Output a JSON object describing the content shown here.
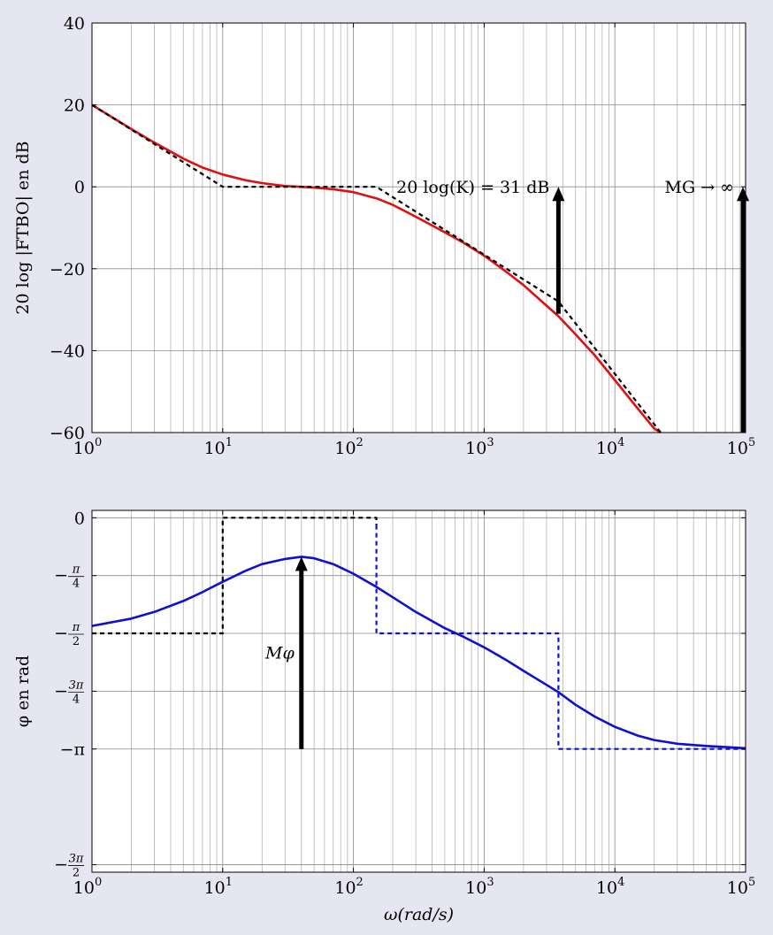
{
  "chart_data": [
    {
      "type": "line",
      "ylabel": "20 log |FTBO| en dB",
      "x_scale": "log",
      "xlim": [
        1,
        100000
      ],
      "ylim": [
        -60,
        40
      ],
      "yticks": [
        40,
        20,
        0,
        -20,
        -40,
        -60
      ],
      "xticks": [
        {
          "base": "10",
          "exp": "0"
        },
        {
          "base": "10",
          "exp": "1"
        },
        {
          "base": "10",
          "exp": "2"
        },
        {
          "base": "10",
          "exp": "3"
        },
        {
          "base": "10",
          "exp": "4"
        },
        {
          "base": "10",
          "exp": "5"
        }
      ],
      "grid": true,
      "series": [
        {
          "style": "solid",
          "color": "#e01010",
          "x": [
            1,
            2,
            3,
            5,
            7,
            10,
            15,
            20,
            30,
            40,
            50,
            70,
            100,
            150,
            200,
            300,
            500,
            700,
            1000,
            1500,
            2000,
            3000,
            3700,
            5000,
            7000,
            10000,
            15000,
            20000,
            22400
          ],
          "y": [
            20,
            14.1,
            10.8,
            6.9,
            4.7,
            3.0,
            1.6,
            0.9,
            0.2,
            0.0,
            -0.2,
            -0.6,
            -1.3,
            -2.8,
            -4.4,
            -7.3,
            -11.1,
            -13.7,
            -16.8,
            -20.9,
            -24.0,
            -29.0,
            -31.6,
            -36.0,
            -41.1,
            -47.2,
            -54.2,
            -59.0,
            -60
          ]
        },
        {
          "style": "dashed",
          "color": "#000000",
          "x": [
            1,
            10,
            150,
            3700,
            22400
          ],
          "y": [
            20,
            0,
            0,
            -28,
            -60
          ]
        }
      ],
      "annotations": [
        {
          "text": "20 log(K) = 31 dB",
          "x": 3700,
          "y_from": -31,
          "y_to": 0
        },
        {
          "text": "MG → ∞",
          "x": 100000,
          "y_from": -60,
          "y_to": 0
        }
      ]
    },
    {
      "type": "line",
      "xlabel": "ω(rad/s)",
      "ylabel": "φ en rad",
      "x_scale": "log",
      "xlim": [
        1,
        100000
      ],
      "ylim": [
        -4.815,
        0.1
      ],
      "yticks": [
        {
          "value": 0,
          "label": "0"
        },
        {
          "value": -0.7854,
          "sign": "−",
          "num": "π",
          "den": "4"
        },
        {
          "value": -1.5708,
          "sign": "−",
          "num": "π",
          "den": "2"
        },
        {
          "value": -2.3562,
          "sign": "−",
          "num": "3π",
          "den": "4"
        },
        {
          "value": -3.1416,
          "label": "−π"
        },
        {
          "value": -4.7124,
          "sign": "−",
          "num": "3π",
          "den": "2"
        }
      ],
      "xticks": [
        {
          "base": "10",
          "exp": "0"
        },
        {
          "base": "10",
          "exp": "1"
        },
        {
          "base": "10",
          "exp": "2"
        },
        {
          "base": "10",
          "exp": "3"
        },
        {
          "base": "10",
          "exp": "4"
        },
        {
          "base": "10",
          "exp": "5"
        }
      ],
      "grid": true,
      "series": [
        {
          "style": "solid",
          "color": "#1010d0",
          "x": [
            1,
            2,
            3,
            5,
            7,
            10,
            15,
            20,
            30,
            40,
            50,
            70,
            100,
            150,
            200,
            300,
            500,
            700,
            1000,
            1500,
            2000,
            3000,
            3700,
            5000,
            7000,
            10000,
            15000,
            20000,
            30000,
            50000,
            100000
          ],
          "y": [
            -1.47,
            -1.37,
            -1.28,
            -1.13,
            -1.01,
            -0.87,
            -0.72,
            -0.63,
            -0.56,
            -0.53,
            -0.55,
            -0.63,
            -0.76,
            -0.94,
            -1.08,
            -1.28,
            -1.5,
            -1.62,
            -1.76,
            -1.94,
            -2.08,
            -2.27,
            -2.37,
            -2.54,
            -2.7,
            -2.84,
            -2.96,
            -3.02,
            -3.07,
            -3.1,
            -3.13
          ]
        },
        {
          "style": "dashed",
          "color": "#000000",
          "x": [
            1,
            10,
            10,
            150,
            150
          ],
          "y": [
            -1.5708,
            -1.5708,
            0,
            0,
            -0.1
          ]
        },
        {
          "style": "dashed",
          "color": "#1010d0",
          "x": [
            150,
            150,
            3700,
            3700,
            100000
          ],
          "y": [
            -0.1,
            -1.5708,
            -1.5708,
            -3.1416,
            -3.1416
          ]
        }
      ],
      "annotations": [
        {
          "text": "Mφ",
          "x": 40,
          "y_from": -3.1416,
          "y_to": -0.53
        }
      ]
    }
  ]
}
